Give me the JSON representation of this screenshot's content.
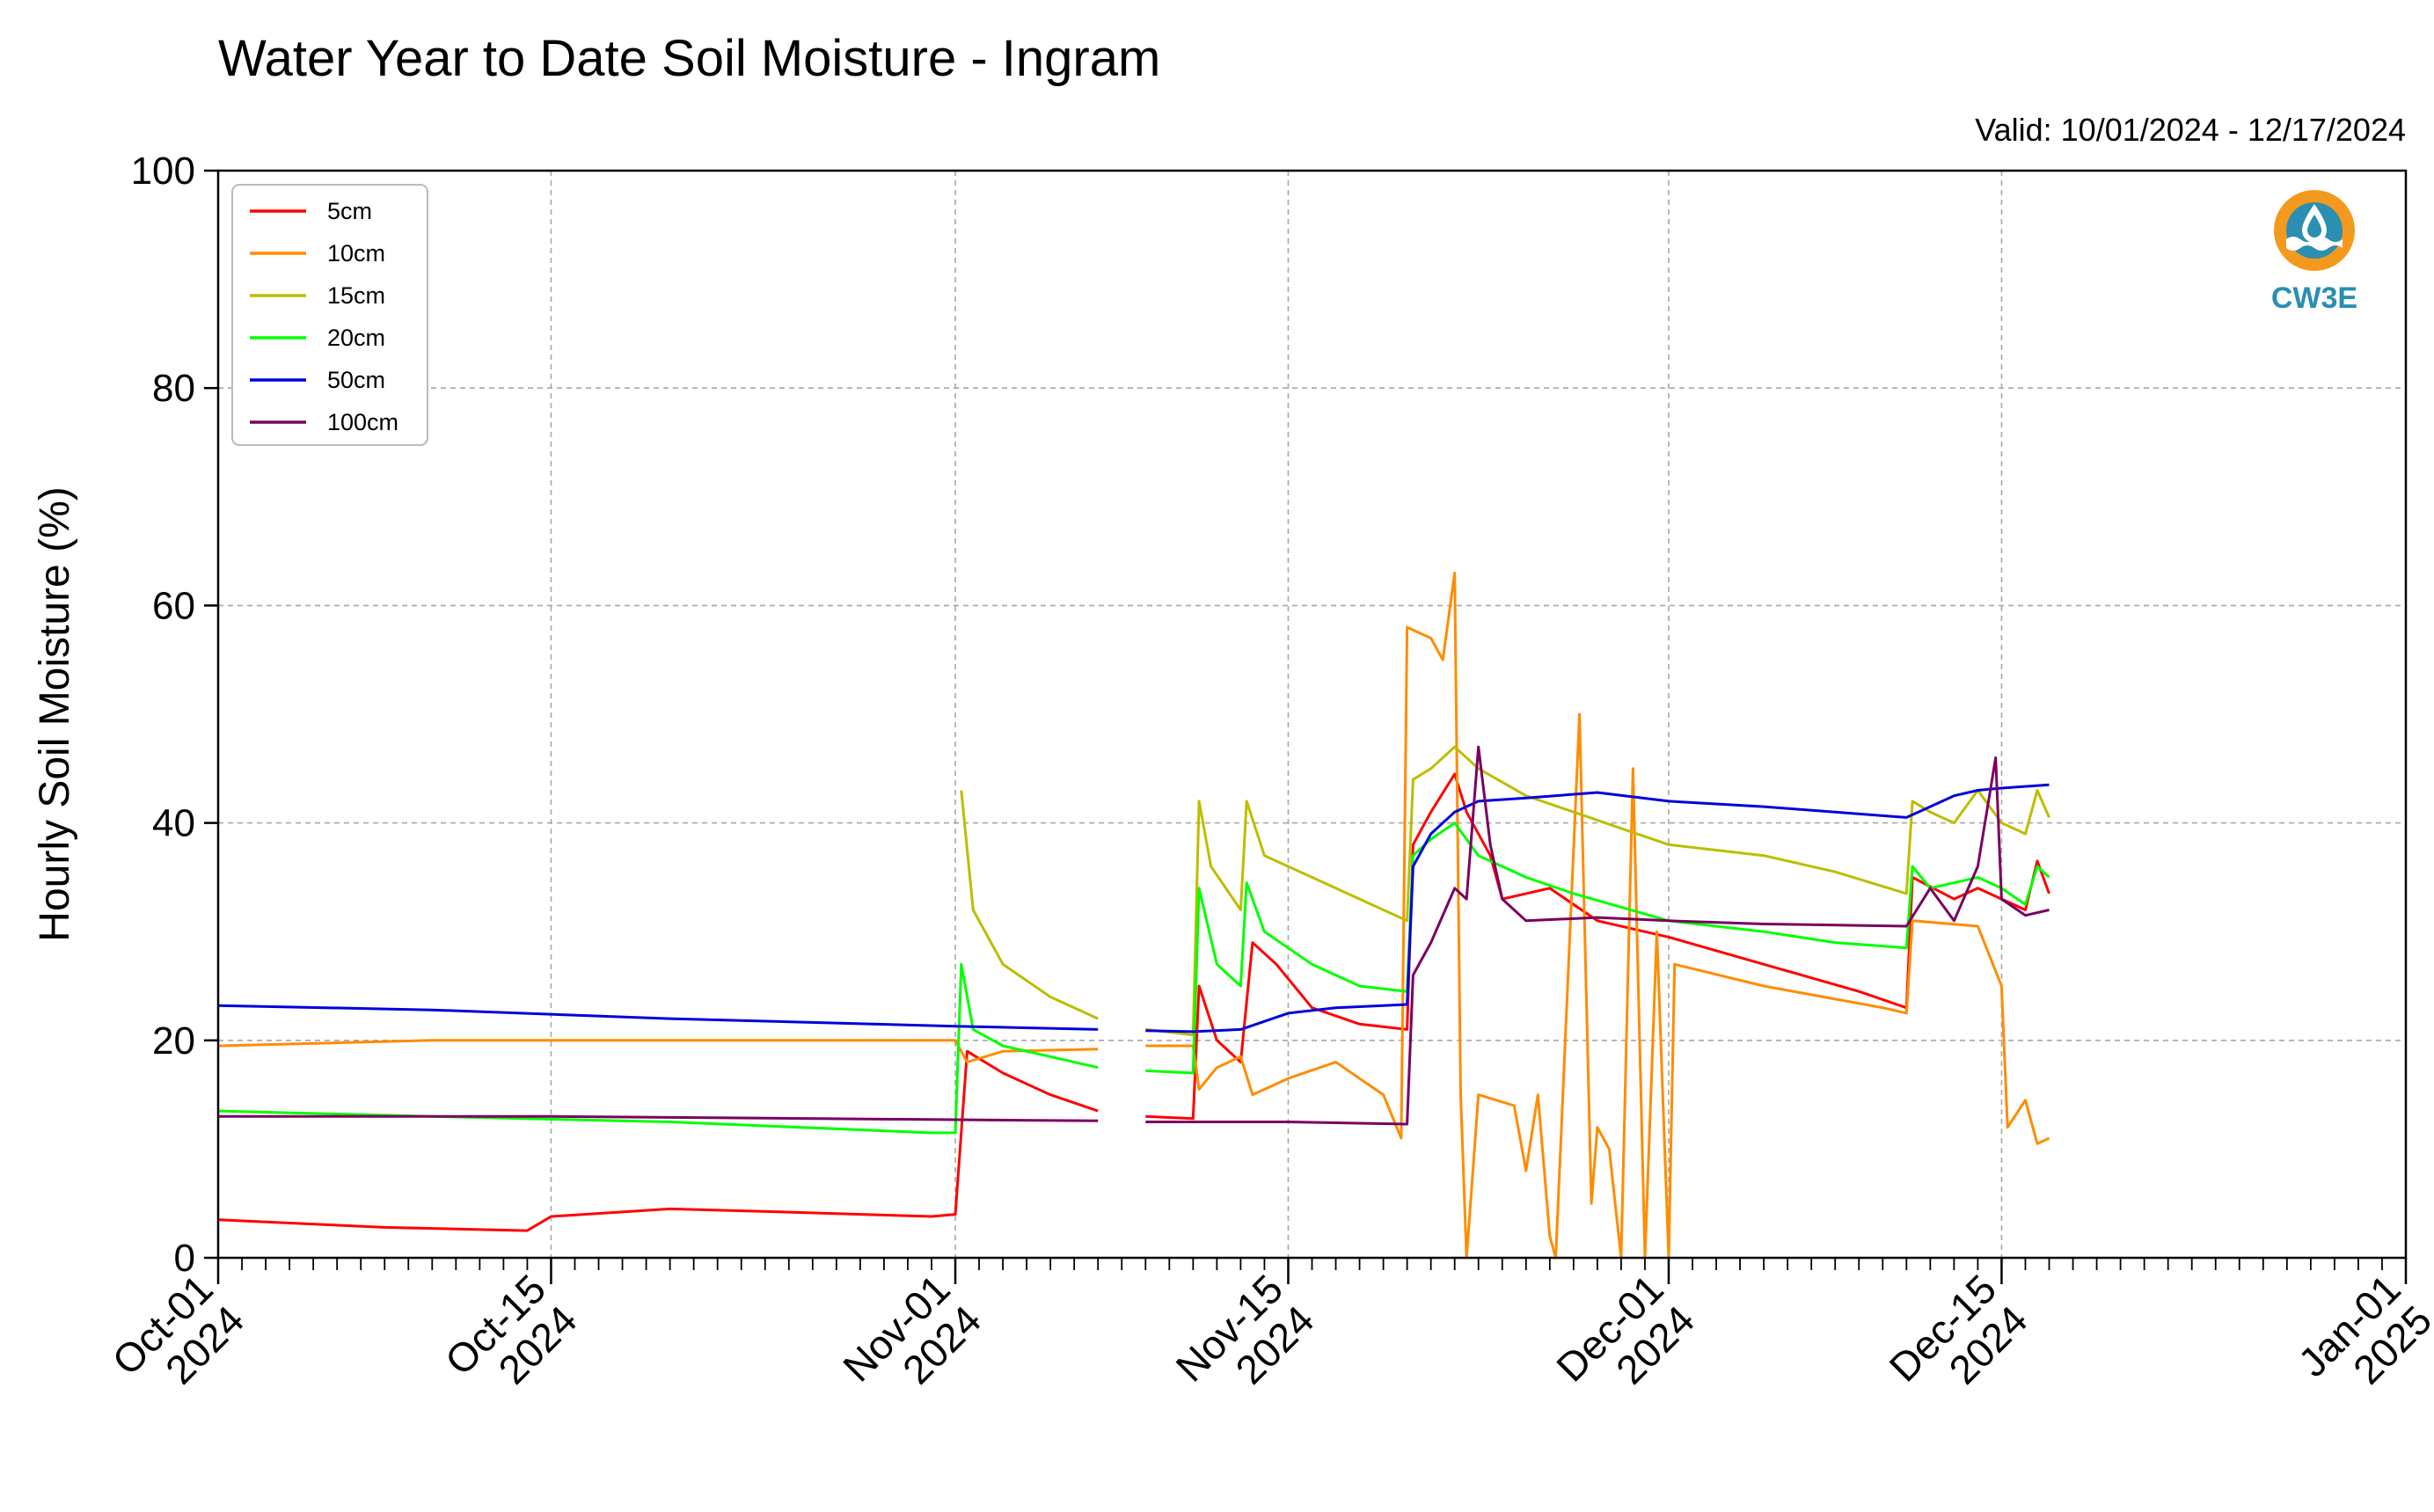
{
  "chart_data": {
    "type": "line",
    "title": "Water Year to Date Soil Moisture - Ingram",
    "subtitle": "Valid: 10/01/2024 - 12/17/2024",
    "ylabel": "Hourly Soil Moisture (%)",
    "xlabel": "",
    "ylim": [
      0,
      100
    ],
    "xlim": [
      "2024-10-01",
      "2025-01-01"
    ],
    "yticks": [
      "0",
      "20",
      "40",
      "60",
      "80",
      "100"
    ],
    "xticks": [
      {
        "date": "2024-10-01",
        "line1": "Oct-01",
        "line2": "2024"
      },
      {
        "date": "2024-10-15",
        "line1": "Oct-15",
        "line2": "2024"
      },
      {
        "date": "2024-11-01",
        "line1": "Nov-01",
        "line2": "2024"
      },
      {
        "date": "2024-11-15",
        "line1": "Nov-15",
        "line2": "2024"
      },
      {
        "date": "2024-12-01",
        "line1": "Dec-01",
        "line2": "2024"
      },
      {
        "date": "2024-12-15",
        "line1": "Dec-15",
        "line2": "2024"
      },
      {
        "date": "2025-01-01",
        "line1": "Jan-01",
        "line2": "2025"
      }
    ],
    "grid": true,
    "legend_position": "top-left",
    "logo_text": "CW3E",
    "series": [
      {
        "name": "5cm",
        "color": "#ff0000",
        "points": [
          [
            "2024-10-01",
            3.5
          ],
          [
            "2024-10-08",
            2.8
          ],
          [
            "2024-10-14",
            2.5
          ],
          [
            "2024-10-15",
            3.8
          ],
          [
            "2024-10-20",
            4.5
          ],
          [
            "2024-10-25",
            4.2
          ],
          [
            "2024-10-31",
            3.8
          ],
          [
            "2024-11-01",
            4.0
          ],
          [
            "2024-11-01T12",
            19.0
          ],
          [
            "2024-11-03",
            17.0
          ],
          [
            "2024-11-05",
            15.0
          ],
          [
            "2024-11-07",
            13.5
          ],
          null,
          [
            "2024-11-09",
            13.0
          ],
          [
            "2024-11-11",
            12.8
          ],
          [
            "2024-11-11T06",
            25.0
          ],
          [
            "2024-11-12",
            20.0
          ],
          [
            "2024-11-13",
            18.0
          ],
          [
            "2024-11-13T12",
            29.0
          ],
          [
            "2024-11-14T12",
            27.0
          ],
          [
            "2024-11-16",
            23.0
          ],
          [
            "2024-11-18",
            21.5
          ],
          [
            "2024-11-20",
            21.0
          ],
          [
            "2024-11-20T06",
            38.0
          ],
          [
            "2024-11-21",
            41.0
          ],
          [
            "2024-11-22",
            44.5
          ],
          [
            "2024-11-22T12",
            41.0
          ],
          [
            "2024-11-23T12",
            37.0
          ],
          [
            "2024-11-24",
            33.0
          ],
          [
            "2024-11-26",
            34.0
          ],
          [
            "2024-11-28",
            31.0
          ],
          [
            "2024-12-01",
            29.5
          ],
          [
            "2024-12-05",
            27.0
          ],
          [
            "2024-12-09",
            24.5
          ],
          [
            "2024-12-11",
            23.0
          ],
          [
            "2024-12-11T06",
            35.0
          ],
          [
            "2024-12-13",
            33.0
          ],
          [
            "2024-12-14",
            34.0
          ],
          [
            "2024-12-15",
            33.0
          ],
          [
            "2024-12-16",
            32.0
          ],
          [
            "2024-12-16T12",
            36.5
          ],
          [
            "2024-12-17",
            33.5
          ]
        ]
      },
      {
        "name": "10cm",
        "color": "#ff8c00",
        "points": [
          [
            "2024-10-01",
            19.5
          ],
          [
            "2024-10-10",
            20.0
          ],
          [
            "2024-10-20",
            20.0
          ],
          [
            "2024-11-01",
            20.0
          ],
          [
            "2024-11-01T12",
            18.0
          ],
          [
            "2024-11-03",
            19.0
          ],
          [
            "2024-11-07",
            19.2
          ],
          null,
          [
            "2024-11-09",
            19.5
          ],
          [
            "2024-11-11",
            19.5
          ],
          [
            "2024-11-11T06",
            15.5
          ],
          [
            "2024-11-12",
            17.5
          ],
          [
            "2024-11-13",
            18.5
          ],
          [
            "2024-11-13T12",
            15.0
          ],
          [
            "2024-11-15",
            16.5
          ],
          [
            "2024-11-17",
            18.0
          ],
          [
            "2024-11-19",
            15.0
          ],
          [
            "2024-11-19T18",
            11.0
          ],
          [
            "2024-11-20",
            58.0
          ],
          [
            "2024-11-21",
            57.0
          ],
          [
            "2024-11-21T12",
            55.0
          ],
          [
            "2024-11-22",
            63.0
          ],
          [
            "2024-11-22T06",
            15.0
          ],
          [
            "2024-11-22T12",
            0.0
          ],
          [
            "2024-11-23",
            15.0
          ],
          [
            "2024-11-24T12",
            14.0
          ],
          [
            "2024-11-25",
            8.0
          ],
          [
            "2024-11-25T12",
            15.0
          ],
          [
            "2024-11-26",
            2.0
          ],
          [
            "2024-11-26T06",
            0.0
          ],
          [
            "2024-11-27T06",
            50.0
          ],
          [
            "2024-11-27T18",
            5.0
          ],
          [
            "2024-11-28",
            12.0
          ],
          [
            "2024-11-28T12",
            10.0
          ],
          [
            "2024-11-29",
            0.0
          ],
          [
            "2024-11-29T12",
            45.0
          ],
          [
            "2024-11-30",
            0.0
          ],
          [
            "2024-11-30T12",
            30.0
          ],
          [
            "2024-12-01",
            0.0
          ],
          [
            "2024-12-01T06",
            27.0
          ],
          [
            "2024-12-05",
            25.0
          ],
          [
            "2024-12-10",
            23.0
          ],
          [
            "2024-12-11",
            22.5
          ],
          [
            "2024-12-11T06",
            31.0
          ],
          [
            "2024-12-14",
            30.5
          ],
          [
            "2024-12-15",
            25.0
          ],
          [
            "2024-12-15T06",
            12.0
          ],
          [
            "2024-12-16",
            14.5
          ],
          [
            "2024-12-16T12",
            10.5
          ],
          [
            "2024-12-17",
            11.0
          ]
        ]
      },
      {
        "name": "15cm",
        "color": "#bdbd00",
        "points": [
          [
            "2024-11-01T06",
            43.0
          ],
          [
            "2024-11-01T18",
            32.0
          ],
          [
            "2024-11-03",
            27.0
          ],
          [
            "2024-11-05",
            24.0
          ],
          [
            "2024-11-07",
            22.0
          ],
          null,
          [
            "2024-11-09",
            21.0
          ],
          [
            "2024-11-11",
            20.5
          ],
          [
            "2024-11-11T06",
            42.0
          ],
          [
            "2024-11-11T18",
            36.0
          ],
          [
            "2024-11-13",
            32.0
          ],
          [
            "2024-11-13T06",
            42.0
          ],
          [
            "2024-11-14",
            37.0
          ],
          [
            "2024-11-16",
            35.0
          ],
          [
            "2024-11-18",
            33.0
          ],
          [
            "2024-11-20",
            31.0
          ],
          [
            "2024-11-20T06",
            44.0
          ],
          [
            "2024-11-21",
            45.0
          ],
          [
            "2024-11-22",
            47.0
          ],
          [
            "2024-11-23",
            45.0
          ],
          [
            "2024-11-25",
            42.5
          ],
          [
            "2024-11-27",
            41.0
          ],
          [
            "2024-11-29",
            39.5
          ],
          [
            "2024-12-01",
            38.0
          ],
          [
            "2024-12-05",
            37.0
          ],
          [
            "2024-12-08",
            35.5
          ],
          [
            "2024-12-11",
            33.5
          ],
          [
            "2024-12-11T06",
            42.0
          ],
          [
            "2024-12-12",
            41.0
          ],
          [
            "2024-12-13",
            40.0
          ],
          [
            "2024-12-14",
            43.0
          ],
          [
            "2024-12-15",
            40.0
          ],
          [
            "2024-12-16",
            39.0
          ],
          [
            "2024-12-16T12",
            43.0
          ],
          [
            "2024-12-17",
            40.5
          ]
        ]
      },
      {
        "name": "20cm",
        "color": "#00ff00",
        "points": [
          [
            "2024-10-01",
            13.5
          ],
          [
            "2024-10-10",
            13.0
          ],
          [
            "2024-10-20",
            12.5
          ],
          [
            "2024-10-31",
            11.5
          ],
          [
            "2024-11-01",
            11.5
          ],
          [
            "2024-11-01T06",
            27.0
          ],
          [
            "2024-11-01T18",
            21.0
          ],
          [
            "2024-11-03",
            19.5
          ],
          [
            "2024-11-05",
            18.5
          ],
          [
            "2024-11-07",
            17.5
          ],
          null,
          [
            "2024-11-09",
            17.2
          ],
          [
            "2024-11-11",
            17.0
          ],
          [
            "2024-11-11T06",
            34.0
          ],
          [
            "2024-11-12",
            27.0
          ],
          [
            "2024-11-13",
            25.0
          ],
          [
            "2024-11-13T06",
            34.5
          ],
          [
            "2024-11-14",
            30.0
          ],
          [
            "2024-11-16",
            27.0
          ],
          [
            "2024-11-18",
            25.0
          ],
          [
            "2024-11-20",
            24.5
          ],
          [
            "2024-11-20T06",
            37.0
          ],
          [
            "2024-11-21",
            38.5
          ],
          [
            "2024-11-22",
            40.0
          ],
          [
            "2024-11-23",
            37.0
          ],
          [
            "2024-11-25",
            35.0
          ],
          [
            "2024-11-27",
            33.5
          ],
          [
            "2024-12-01",
            31.0
          ],
          [
            "2024-12-05",
            30.0
          ],
          [
            "2024-12-08",
            29.0
          ],
          [
            "2024-12-11",
            28.5
          ],
          [
            "2024-12-11T06",
            36.0
          ],
          [
            "2024-12-12",
            34.0
          ],
          [
            "2024-12-14",
            35.0
          ],
          [
            "2024-12-15",
            34.0
          ],
          [
            "2024-12-16",
            32.5
          ],
          [
            "2024-12-16T12",
            36.0
          ],
          [
            "2024-12-17",
            35.0
          ]
        ]
      },
      {
        "name": "50cm",
        "color": "#0000dd",
        "points": [
          [
            "2024-10-01",
            23.2
          ],
          [
            "2024-10-10",
            22.8
          ],
          [
            "2024-10-20",
            22.0
          ],
          [
            "2024-11-01",
            21.3
          ],
          [
            "2024-11-07",
            21.0
          ],
          null,
          [
            "2024-11-09",
            20.9
          ],
          [
            "2024-11-11",
            20.8
          ],
          [
            "2024-11-13",
            21.0
          ],
          [
            "2024-11-15",
            22.5
          ],
          [
            "2024-11-17",
            23.0
          ],
          [
            "2024-11-20",
            23.3
          ],
          [
            "2024-11-20T06",
            36.0
          ],
          [
            "2024-11-21",
            39.0
          ],
          [
            "2024-11-22",
            41.0
          ],
          [
            "2024-11-23",
            42.0
          ],
          [
            "2024-11-25",
            42.3
          ],
          [
            "2024-11-28",
            42.8
          ],
          [
            "2024-12-01",
            42.0
          ],
          [
            "2024-12-05",
            41.5
          ],
          [
            "2024-12-11",
            40.5
          ],
          [
            "2024-12-12",
            41.5
          ],
          [
            "2024-12-13",
            42.5
          ],
          [
            "2024-12-14",
            43.0
          ],
          [
            "2024-12-15",
            43.2
          ],
          [
            "2024-12-17",
            43.5
          ]
        ]
      },
      {
        "name": "100cm",
        "color": "#7a0060",
        "points": [
          [
            "2024-10-01",
            13.0
          ],
          [
            "2024-10-15",
            13.0
          ],
          [
            "2024-11-01",
            12.7
          ],
          [
            "2024-11-07",
            12.6
          ],
          null,
          [
            "2024-11-09",
            12.5
          ],
          [
            "2024-11-15",
            12.5
          ],
          [
            "2024-11-20",
            12.3
          ],
          [
            "2024-11-20T06",
            26.0
          ],
          [
            "2024-11-21",
            29.0
          ],
          [
            "2024-11-22",
            34.0
          ],
          [
            "2024-11-22T12",
            33.0
          ],
          [
            "2024-11-23",
            47.0
          ],
          [
            "2024-11-23T12",
            38.0
          ],
          [
            "2024-11-24",
            33.0
          ],
          [
            "2024-11-25",
            31.0
          ],
          [
            "2024-11-28",
            31.3
          ],
          [
            "2024-12-01",
            31.0
          ],
          [
            "2024-12-05",
            30.7
          ],
          [
            "2024-12-11",
            30.5
          ],
          [
            "2024-12-12",
            34.0
          ],
          [
            "2024-12-13",
            31.0
          ],
          [
            "2024-12-14",
            36.0
          ],
          [
            "2024-12-14T18",
            46.0
          ],
          [
            "2024-12-15",
            33.0
          ],
          [
            "2024-12-16",
            31.5
          ],
          [
            "2024-12-17",
            32.0
          ]
        ]
      }
    ]
  }
}
